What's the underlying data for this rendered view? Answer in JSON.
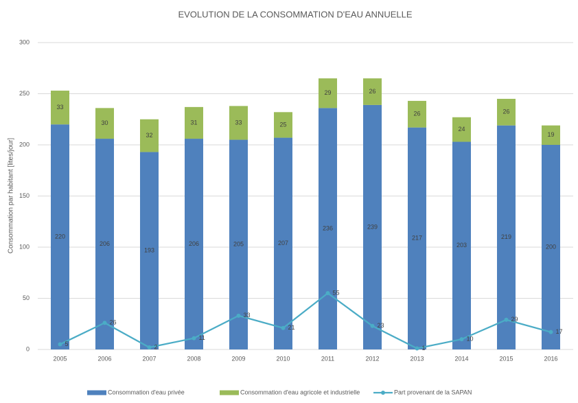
{
  "chart_data": {
    "type": "bar",
    "stacked": true,
    "title": "EVOLUTION DE LA CONSOMMATION D'EAU ANNUELLE",
    "y_label": "Consommation par habitant [lites/jour]",
    "categories": [
      "2005",
      "2006",
      "2007",
      "2008",
      "2009",
      "2010",
      "2011",
      "2012",
      "2013",
      "2014",
      "2015",
      "2016"
    ],
    "series": [
      {
        "name": "Consommation d'eau privée",
        "color": "#4f81bd",
        "type": "bar",
        "values": [
          220,
          206,
          193,
          206,
          205,
          207,
          236,
          239,
          217,
          203,
          219,
          200
        ]
      },
      {
        "name": "Consommation d'eau agricole et industrielle",
        "color": "#9bbb59",
        "type": "bar",
        "values": [
          33,
          30,
          32,
          31,
          33,
          25,
          29,
          26,
          26,
          24,
          26,
          19
        ]
      },
      {
        "name": "Part provenant de la SAPAN",
        "color": "#4bacc6",
        "type": "line",
        "values": [
          5,
          26,
          2,
          11,
          33,
          21,
          55,
          23,
          1,
          10,
          29,
          17
        ]
      }
    ],
    "ylim": [
      0,
      300
    ],
    "yticks": [
      0,
      50,
      100,
      150,
      200,
      250,
      300
    ],
    "grid": true,
    "legend": "bottom"
  }
}
